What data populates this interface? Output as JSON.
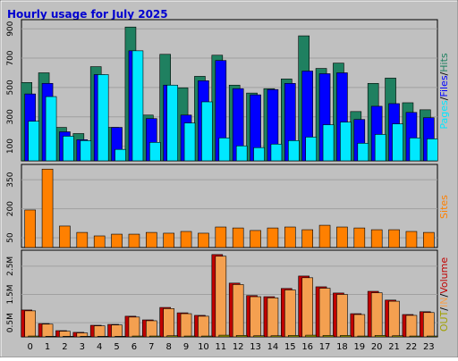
{
  "title": "Hourly usage for July 2025",
  "legend_separator": "/",
  "chart_data": [
    {
      "type": "bar",
      "ylim": [
        0,
        950
      ],
      "yticks": [
        100,
        300,
        500,
        700,
        900
      ],
      "grid": true,
      "series": [
        {
          "name": "Hits",
          "color": "#1f8060",
          "values": [
            534,
            600,
            228,
            186,
            642,
            228,
            912,
            312,
            726,
            498,
            576,
            720,
            516,
            462,
            492,
            558,
            852,
            630,
            666,
            336,
            528,
            564,
            396,
            348
          ]
        },
        {
          "name": "Files",
          "color": "#0000ff",
          "values": [
            456,
            528,
            198,
            144,
            588,
            228,
            750,
            288,
            516,
            312,
            546,
            684,
            492,
            450,
            486,
            528,
            612,
            594,
            600,
            282,
            372,
            390,
            330,
            294
          ]
        },
        {
          "name": "Pages",
          "color": "#00e8ff",
          "values": [
            270,
            438,
            168,
            138,
            588,
            78,
            750,
            126,
            516,
            258,
            402,
            156,
            102,
            90,
            114,
            138,
            162,
            246,
            264,
            120,
            180,
            252,
            156,
            150
          ]
        }
      ]
    },
    {
      "type": "bar",
      "ylim": [
        0,
        420
      ],
      "yticks": [
        50,
        200,
        350
      ],
      "grid": true,
      "series": [
        {
          "name": "Sites",
          "color": "#ff8000",
          "values": [
            194,
            405,
            111,
            78,
            60,
            69,
            69,
            78,
            74,
            83,
            74,
            106,
            101,
            88,
            101,
            106,
            92,
            115,
            106,
            101,
            92,
            92,
            83,
            78
          ]
        }
      ]
    },
    {
      "type": "bar",
      "ylim": [
        0,
        3
      ],
      "yticks": [
        {
          "value": 0.5,
          "label": "0.5M"
        },
        {
          "value": 1.5,
          "label": "1.5M"
        },
        {
          "value": 2.5,
          "label": "2.5M"
        }
      ],
      "grid": true,
      "categories": [
        "0",
        "1",
        "2",
        "3",
        "4",
        "5",
        "6",
        "7",
        "8",
        "9",
        "10",
        "11",
        "12",
        "13",
        "14",
        "15",
        "16",
        "17",
        "18",
        "19",
        "20",
        "21",
        "22",
        "23"
      ],
      "series": [
        {
          "name": "Volume",
          "color": "#c00000",
          "values": [
            0.95,
            0.47,
            0.22,
            0.16,
            0.41,
            0.44,
            0.73,
            0.6,
            1.04,
            0.85,
            0.76,
            2.91,
            1.9,
            1.46,
            1.42,
            1.71,
            2.15,
            1.77,
            1.55,
            0.82,
            1.61,
            1.3,
            0.79,
            0.89
          ]
        },
        {
          "name": "IN",
          "color": "#f4a050",
          "values": [
            0.92,
            0.45,
            0.2,
            0.14,
            0.39,
            0.42,
            0.7,
            0.57,
            1.0,
            0.82,
            0.73,
            2.85,
            1.85,
            1.42,
            1.38,
            1.66,
            2.09,
            1.72,
            1.5,
            0.79,
            1.56,
            1.26,
            0.76,
            0.86
          ]
        },
        {
          "name": "OUT",
          "color": "#a0a000",
          "values": [
            0.03,
            0.02,
            0.02,
            0.02,
            0.02,
            0.02,
            0.03,
            0.03,
            0.04,
            0.03,
            0.03,
            0.06,
            0.05,
            0.04,
            0.04,
            0.05,
            0.06,
            0.05,
            0.05,
            0.03,
            0.05,
            0.04,
            0.03,
            0.03
          ]
        }
      ]
    }
  ]
}
